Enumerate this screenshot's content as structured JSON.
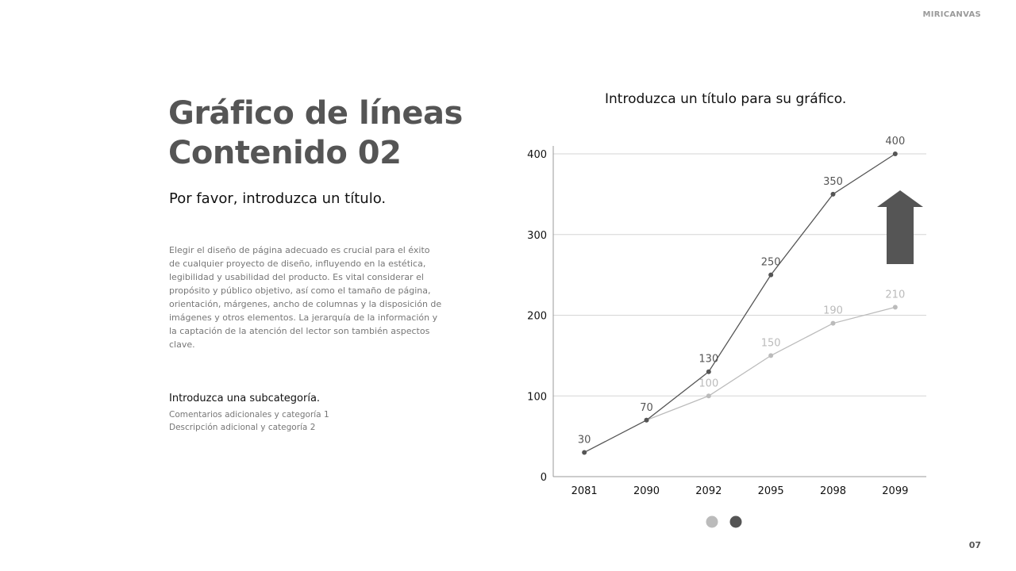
{
  "brand": "MIRICANVAS",
  "title_line1": "Gráfico de líneas",
  "title_line2": "Contenido 02",
  "subtitle": "Por favor, introduzca un título.",
  "body": "Elegir el diseño de página adecuado es crucial para el éxito de cualquier proyecto de diseño, influyendo en la estética, legibilidad y usabilidad del producto. Es vital considerar el propósito y público objetivo, así como el tamaño de página, orientación, márgenes, ancho de columnas y la disposición de imágenes y otros elementos. La jerarquía de la información y la captación de la atención del lector son también aspectos clave.",
  "subcategory": "Introduzca una subcategoría.",
  "notes": [
    "Comentarios adicionales y categoría 1",
    "Descripción adicional y categoría 2"
  ],
  "page_number": "07",
  "chart_data": {
    "type": "line",
    "title": "Introduzca un título para su gráfico.",
    "categories": [
      "2081",
      "2090",
      "2092",
      "2095",
      "2098",
      "2099"
    ],
    "ylim": [
      0,
      400
    ],
    "yticks": [
      0,
      100,
      200,
      300,
      400
    ],
    "grid": true,
    "legend": "bottom",
    "series": [
      {
        "values": [
          30,
          70,
          130,
          250,
          350,
          400
        ],
        "color": "#555555"
      },
      {
        "values": [
          null,
          70,
          100,
          150,
          190,
          210
        ],
        "color": "#bbbbbb"
      }
    ],
    "annotation": "up-arrow-icon"
  }
}
